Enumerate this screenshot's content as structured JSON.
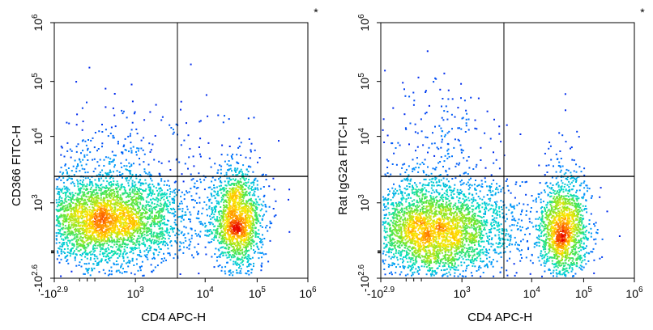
{
  "chart_data": [
    {
      "type": "scatter",
      "subtype": "flow-cytometry-density",
      "marker": "*",
      "xlabel": "CD4 APC-H",
      "ylabel": "CD366 FITC-H",
      "x_scale": "biexponential",
      "y_scale": "biexponential",
      "xlim": [
        -800,
        1000000
      ],
      "ylim": [
        -400,
        1000000
      ],
      "x_ticks": [
        {
          "base": "-10",
          "exp": "2.9",
          "value": -800
        },
        {
          "base": "10",
          "exp": "3",
          "value": 1000
        },
        {
          "base": "10",
          "exp": "4",
          "value": 10000
        },
        {
          "base": "10",
          "exp": "5",
          "value": 100000
        },
        {
          "base": "10",
          "exp": "6",
          "value": 1000000
        }
      ],
      "y_ticks": [
        {
          "base": "-10",
          "exp": "2.6",
          "value": -400
        },
        {
          "base": "10",
          "exp": "3",
          "value": 1000
        },
        {
          "base": "10",
          "exp": "4",
          "value": 10000
        },
        {
          "base": "10",
          "exp": "5",
          "value": 100000
        },
        {
          "base": "10",
          "exp": "6",
          "value": 1000000
        }
      ],
      "quadrant_gate": {
        "x": 4000,
        "y": 2500
      },
      "populations": [
        {
          "x": 350,
          "y": 700,
          "sx": 0.15,
          "sy": 0.09,
          "n": 3300
        },
        {
          "x": 40000,
          "y": 700,
          "sx": 0.05,
          "sy": 0.1,
          "n": 1500
        },
        {
          "x": 500,
          "y": 5000,
          "sx": 0.12,
          "sy": 0.13,
          "n": 230
        },
        {
          "x": 4000,
          "y": 700,
          "sx": 0.18,
          "sy": 0.09,
          "n": 160
        },
        {
          "x": 9000,
          "y": 4000,
          "sx": 0.1,
          "sy": 0.12,
          "n": 90
        }
      ]
    },
    {
      "type": "scatter",
      "subtype": "flow-cytometry-density",
      "marker": "*",
      "xlabel": "CD4 APC-H",
      "ylabel": "Rat IgG2a FITC-H",
      "x_scale": "biexponential",
      "y_scale": "biexponential",
      "xlim": [
        -800,
        1000000
      ],
      "ylim": [
        -400,
        1000000
      ],
      "x_ticks": [
        {
          "base": "-10",
          "exp": "2.9",
          "value": -800
        },
        {
          "base": "10",
          "exp": "3",
          "value": 1000
        },
        {
          "base": "10",
          "exp": "4",
          "value": 10000
        },
        {
          "base": "10",
          "exp": "5",
          "value": 100000
        },
        {
          "base": "10",
          "exp": "6",
          "value": 1000000
        }
      ],
      "y_ticks": [
        {
          "base": "-10",
          "exp": "2.6",
          "value": -400
        },
        {
          "base": "10",
          "exp": "3",
          "value": 1000
        },
        {
          "base": "10",
          "exp": "4",
          "value": 10000
        },
        {
          "base": "10",
          "exp": "5",
          "value": 100000
        },
        {
          "base": "10",
          "exp": "6",
          "value": 1000000
        }
      ],
      "quadrant_gate": {
        "x": 4000,
        "y": 2500
      },
      "populations": [
        {
          "x": 350,
          "y": 500,
          "sx": 0.15,
          "sy": 0.1,
          "n": 3200
        },
        {
          "x": 40000,
          "y": 500,
          "sx": 0.05,
          "sy": 0.1,
          "n": 1400
        },
        {
          "x": 500,
          "y": 6000,
          "sx": 0.11,
          "sy": 0.16,
          "n": 230
        },
        {
          "x": 4000,
          "y": 500,
          "sx": 0.18,
          "sy": 0.09,
          "n": 140
        },
        {
          "x": 40000,
          "y": 4000,
          "sx": 0.04,
          "sy": 0.12,
          "n": 40
        }
      ]
    }
  ]
}
